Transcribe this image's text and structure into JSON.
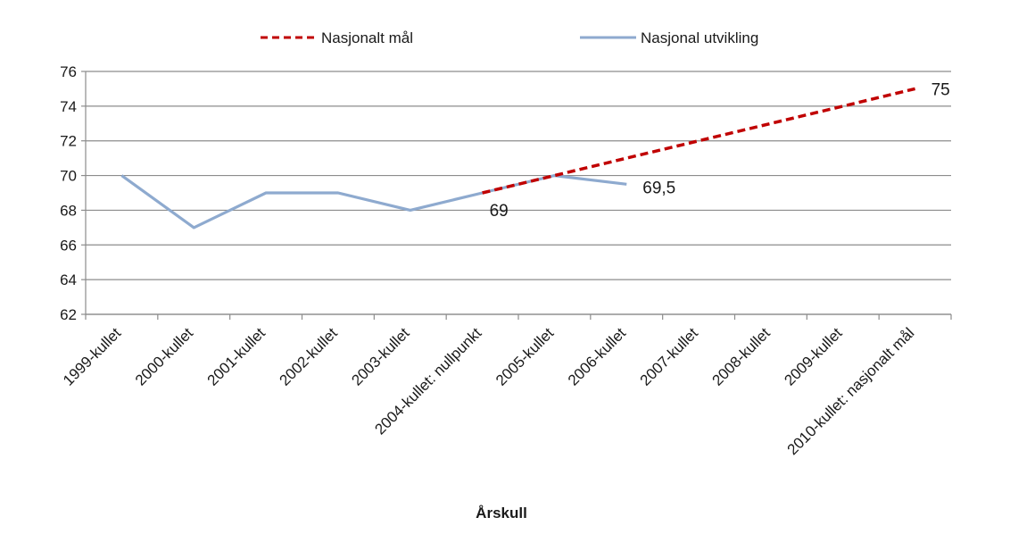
{
  "chart_data": {
    "type": "line",
    "title": "",
    "xlabel": "Årskull",
    "ylabel": "",
    "ylim": [
      62,
      76
    ],
    "yticks": [
      62,
      64,
      66,
      68,
      70,
      72,
      74,
      76
    ],
    "grid": true,
    "legend_position": "top",
    "categories": [
      "1999-kullet",
      "2000-kullet",
      "2001-kullet",
      "2002-kullet",
      "2003-kullet",
      "2004-kullet: nullpunkt",
      "2005-kullet",
      "2006-kullet",
      "2007-kullet",
      "2008-kullet",
      "2009-kullet",
      "2010-kullet: nasjonalt mål"
    ],
    "series": [
      {
        "name": "Nasjonalt mål",
        "style": "dashed",
        "color": "#c00000",
        "values": [
          null,
          null,
          null,
          null,
          null,
          69,
          70,
          71,
          72,
          73,
          74,
          75
        ]
      },
      {
        "name": "Nasjonal utvikling",
        "style": "solid",
        "color": "#8eaacf",
        "values": [
          70,
          67,
          69,
          69,
          68,
          69,
          70,
          69.5,
          null,
          null,
          null,
          null
        ]
      }
    ],
    "annotations": [
      {
        "category_index": 5,
        "value": 69,
        "text": "69"
      },
      {
        "category_index": 7,
        "value": 69.5,
        "text": "69,5"
      },
      {
        "category_index": 11,
        "value": 75,
        "text": "75"
      }
    ]
  }
}
